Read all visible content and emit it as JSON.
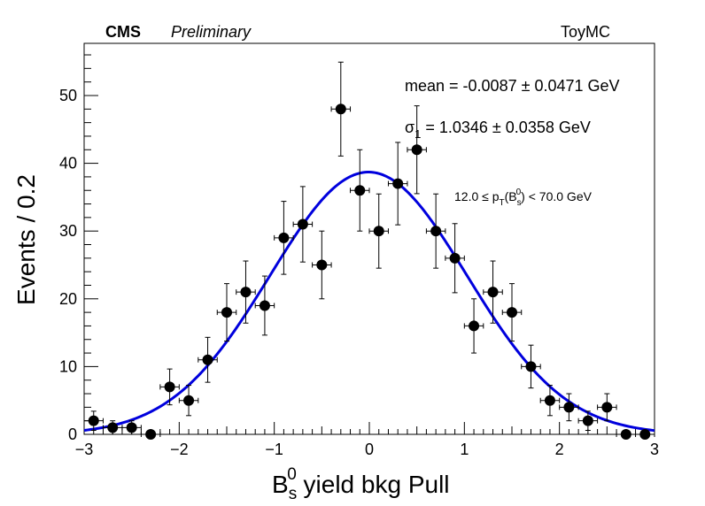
{
  "header": {
    "experiment": "CMS",
    "status": "Preliminary",
    "sample": "ToyMC"
  },
  "annotations": {
    "mean_label": "mean = -0.0087 ± 0.0471 GeV",
    "sigma_symbol": "σ",
    "sigma_sub": "1",
    "sigma_rest": " = 1.0346 ± 0.0358 GeV",
    "range_pre": "12.0 ≤ p",
    "range_sub_T": "T",
    "range_open": "(B",
    "range_sub_s": "s",
    "range_sup_0": "0",
    "range_post": ") < 70.0 GeV"
  },
  "axes": {
    "ylabel": "Events / 0.2",
    "xlabel_B": "B",
    "xlabel_sub": "s",
    "xlabel_sup": "0",
    "xlabel_rest": " yield bkg Pull"
  },
  "chart_data": {
    "type": "scatter",
    "xlim": [
      -3,
      3
    ],
    "ylim": [
      0,
      57.7
    ],
    "x_ticks": [
      -3,
      -2,
      -1,
      0,
      1,
      2,
      3
    ],
    "y_ticks": [
      0,
      10,
      20,
      30,
      40,
      50
    ],
    "bin_width": 0.2,
    "series": [
      {
        "x": [
          -2.9,
          -2.7,
          -2.5,
          -2.3,
          -2.1,
          -1.9,
          -1.7,
          -1.5,
          -1.3,
          -1.1,
          -0.9,
          -0.7,
          -0.5,
          -0.3,
          -0.1,
          0.1,
          0.3,
          0.5,
          0.7,
          0.9,
          1.1,
          1.3,
          1.5,
          1.7,
          1.9,
          2.1,
          2.3,
          2.5,
          2.7,
          2.9
        ],
        "y": [
          2,
          1,
          1,
          0,
          7,
          5,
          11,
          18,
          21,
          19,
          29,
          31,
          25,
          48,
          36,
          30,
          37,
          42,
          30,
          26,
          16,
          21,
          18,
          10,
          5,
          4,
          2,
          4,
          0,
          0
        ]
      }
    ],
    "fit": {
      "type": "gaussian",
      "mean": -0.0087,
      "sigma": 1.0346,
      "peak": 38.7,
      "color": "#0000dd"
    },
    "marker_color": "#000000",
    "grid": false
  }
}
